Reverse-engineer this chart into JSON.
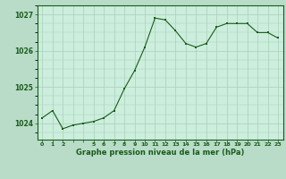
{
  "x": [
    0,
    1,
    2,
    3,
    4,
    5,
    6,
    7,
    8,
    9,
    10,
    11,
    12,
    13,
    14,
    15,
    16,
    17,
    18,
    19,
    20,
    21,
    22,
    23
  ],
  "y": [
    1024.15,
    1024.35,
    1023.85,
    1023.95,
    1024.0,
    1024.05,
    1024.15,
    1024.35,
    1024.95,
    1025.45,
    1026.1,
    1026.9,
    1026.85,
    1026.55,
    1026.2,
    1026.1,
    1026.2,
    1026.65,
    1026.75,
    1026.75,
    1026.75,
    1026.5,
    1026.5,
    1026.35
  ],
  "line_color": "#1a5c1a",
  "marker_color": "#1a5c1a",
  "bg_color": "#b8dcc8",
  "plot_bg_color": "#cceedd",
  "grid_color": "#aacfbb",
  "xlabel": "Graphe pression niveau de la mer (hPa)",
  "yticks": [
    1024,
    1025,
    1026,
    1027
  ],
  "ylim": [
    1023.55,
    1027.25
  ],
  "xlim": [
    -0.5,
    23.5
  ],
  "xtick_labels": [
    "0",
    "1",
    "2",
    "",
    "",
    "5",
    "6",
    "7",
    "8",
    "9",
    "10",
    "11",
    "12",
    "13",
    "14",
    "15",
    "16",
    "17",
    "18",
    "19",
    "20",
    "21",
    "22",
    "23"
  ]
}
